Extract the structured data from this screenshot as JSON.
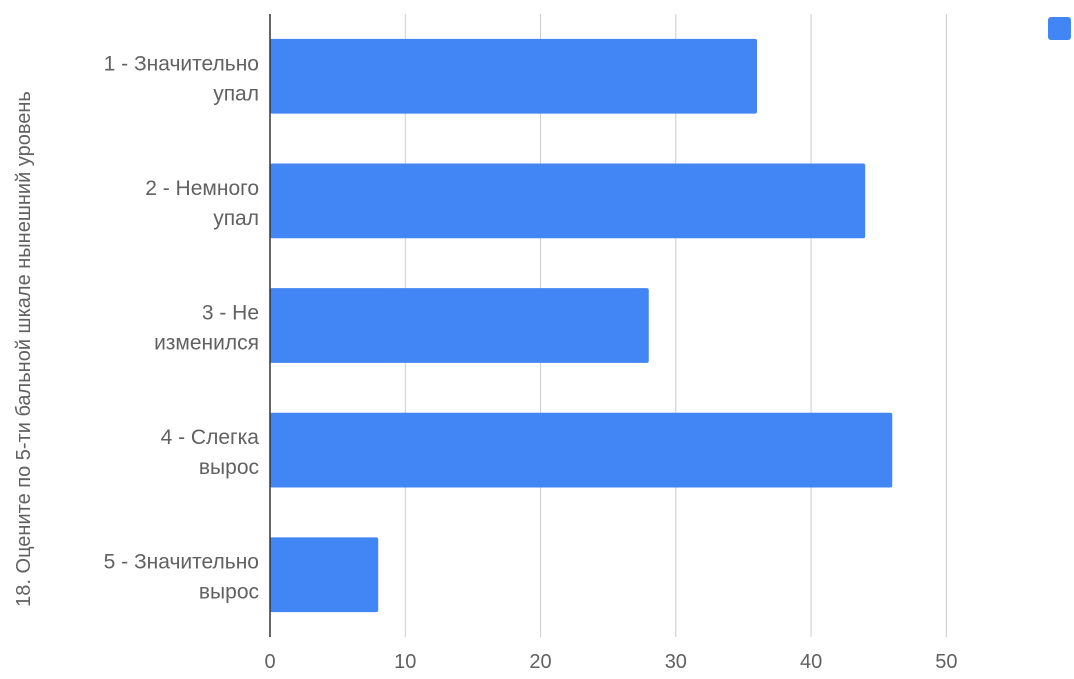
{
  "chart_data": {
    "type": "bar",
    "orientation": "horizontal",
    "ylabel": "18. Оцените по 5-ти бальной шкале нынешний уровень",
    "xlabel": "",
    "categories": [
      [
        "1 - Значительно",
        "упал"
      ],
      [
        "2 - Немного",
        "упал"
      ],
      [
        "3 - Не",
        "изменился"
      ],
      [
        "4 - Слегка",
        "вырос"
      ],
      [
        "5 - Значительно",
        "вырос"
      ]
    ],
    "values": [
      36,
      44,
      28,
      46,
      8
    ],
    "xlim": [
      0,
      55
    ],
    "xticks": [
      0,
      10,
      20,
      30,
      40,
      50
    ],
    "grid": true,
    "legend": {
      "placement": "top-right",
      "entries": [
        ""
      ]
    },
    "bar_color": "#4285f4",
    "grid_color": "#cccccc",
    "axis_color": "#333333",
    "text_color": "#616161"
  }
}
